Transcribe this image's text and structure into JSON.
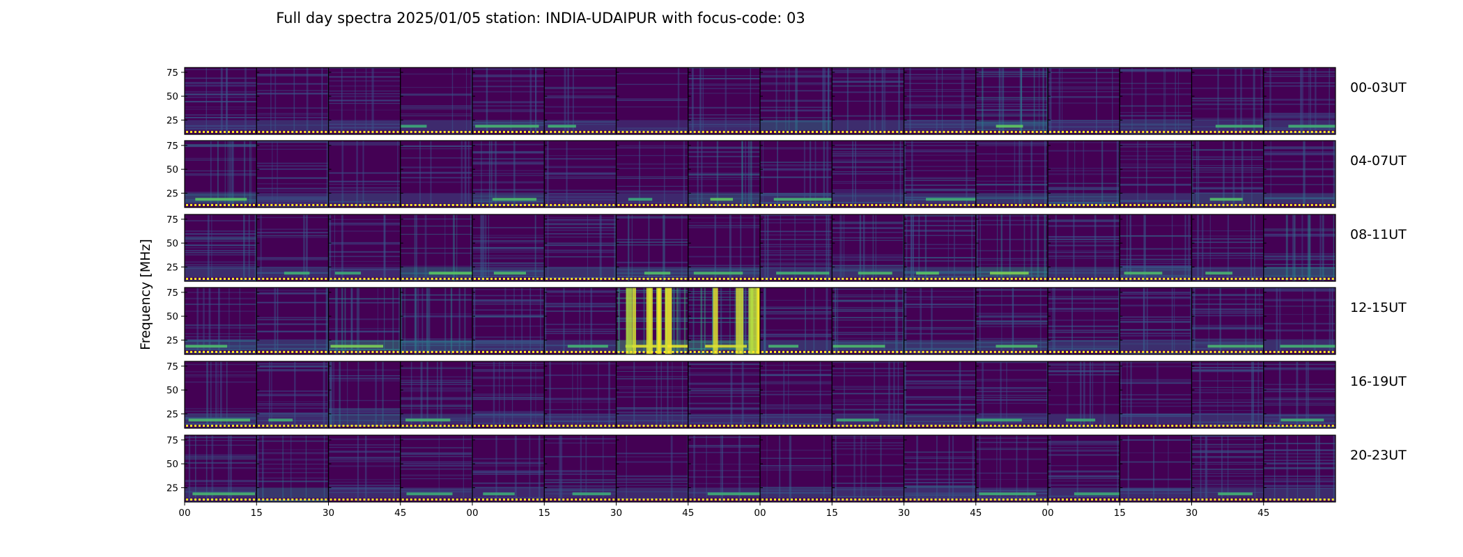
{
  "chart_data": {
    "type": "heatmap",
    "title": "Full day spectra 2025/01/05 station: INDIA-UDAIPUR with focus-code: 03",
    "ylabel": "Frequency [MHz]",
    "xlabel": "",
    "y_ticks": [
      25,
      50,
      75
    ],
    "ylim": [
      10,
      80
    ],
    "x_tick_labels": [
      "00",
      "15",
      "30",
      "45",
      "00",
      "15",
      "30",
      "45",
      "00",
      "15",
      "30",
      "45",
      "00",
      "15",
      "30",
      "45"
    ],
    "panels_per_row": 16,
    "minutes_per_panel": 15,
    "colormap": "viridis",
    "background_color": "#440154",
    "rows": [
      {
        "label": "00-03UT",
        "intensity": [
          0.15,
          0.18,
          0.12,
          0.14,
          0.25,
          0.2,
          0.05,
          0.15,
          0.35,
          0.25,
          0.18,
          0.45,
          0.15,
          0.22,
          0.2,
          0.2
        ],
        "bursts": []
      },
      {
        "label": "04-07UT",
        "intensity": [
          0.4,
          0.15,
          0.18,
          0.15,
          0.3,
          0.1,
          0.12,
          0.45,
          0.25,
          0.2,
          0.18,
          0.35,
          0.3,
          0.18,
          0.35,
          0.25
        ],
        "bursts": []
      },
      {
        "label": "08-11UT",
        "intensity": [
          0.25,
          0.18,
          0.15,
          0.4,
          0.3,
          0.22,
          0.35,
          0.28,
          0.22,
          0.3,
          0.4,
          0.55,
          0.22,
          0.3,
          0.25,
          0.5
        ],
        "bursts": []
      },
      {
        "label": "12-15UT",
        "intensity": [
          0.3,
          0.3,
          0.55,
          0.55,
          0.2,
          0.22,
          0.9,
          0.85,
          0.25,
          0.3,
          0.25,
          0.28,
          0.25,
          0.28,
          0.25,
          0.22
        ],
        "bursts": [
          6,
          7
        ]
      },
      {
        "label": "16-19UT",
        "intensity": [
          0.3,
          0.2,
          0.28,
          0.25,
          0.18,
          0.18,
          0.2,
          0.18,
          0.15,
          0.15,
          0.18,
          0.15,
          0.15,
          0.15,
          0.2,
          0.18
        ],
        "bursts": []
      },
      {
        "label": "20-23UT",
        "intensity": [
          0.25,
          0.35,
          0.15,
          0.15,
          0.15,
          0.15,
          0.15,
          0.18,
          0.2,
          0.22,
          0.22,
          0.18,
          0.15,
          0.2,
          0.22,
          0.22
        ],
        "bursts": []
      }
    ]
  }
}
